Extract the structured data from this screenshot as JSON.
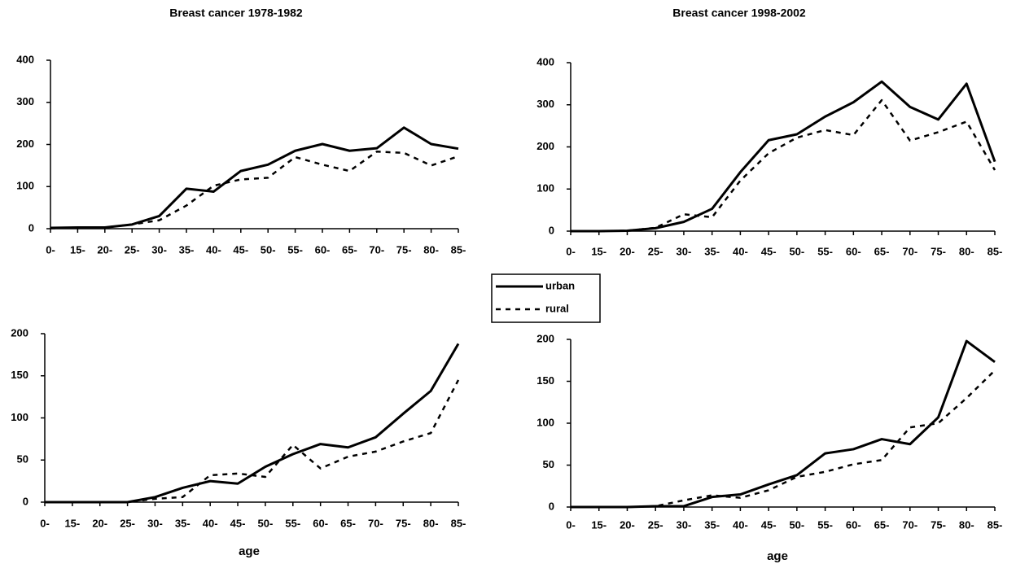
{
  "chart_data": [
    {
      "type": "line",
      "title": "Breast cancer 1978-1982",
      "categories": [
        "0-",
        "15-",
        "20-",
        "25-",
        "30-",
        "35-",
        "40-",
        "45-",
        "50-",
        "55-",
        "60-",
        "65-",
        "70-",
        "75-",
        "80-",
        "85-"
      ],
      "series": [
        {
          "name": "urban",
          "color": "#000000",
          "dashed": false,
          "values": [
            2,
            3,
            3,
            10,
            30,
            95,
            88,
            137,
            152,
            185,
            201,
            185,
            191,
            240,
            201,
            190
          ]
        },
        {
          "name": "rural",
          "color": "#000000",
          "dashed": true,
          "values": [
            1,
            2,
            3,
            10,
            20,
            55,
            102,
            117,
            121,
            170,
            152,
            137,
            183,
            180,
            150,
            172
          ]
        }
      ],
      "ylim": [
        0,
        400
      ],
      "yticks": [
        0,
        100,
        200,
        300,
        400
      ]
    },
    {
      "type": "line",
      "title": "Breast cancer 1998-2002",
      "categories": [
        "0-",
        "15-",
        "20-",
        "25-",
        "30-",
        "35-",
        "40-",
        "45-",
        "50-",
        "55-",
        "60-",
        "65-",
        "70-",
        "75-",
        "80-",
        "85-"
      ],
      "series": [
        {
          "color": "#000000",
          "dashed": false,
          "values": [
            0,
            0,
            1,
            7,
            22,
            53,
            140,
            216,
            230,
            272,
            306,
            355,
            295,
            265,
            350,
            165
          ]
        },
        {
          "color": "#000000",
          "dashed": true,
          "values": [
            0,
            0,
            1,
            8,
            40,
            33,
            120,
            185,
            222,
            240,
            228,
            311,
            215,
            235,
            260,
            145
          ]
        }
      ],
      "ylim": [
        0,
        400
      ],
      "yticks": [
        0,
        100,
        200,
        300,
        400
      ]
    },
    {
      "type": "line",
      "x_label": "age",
      "categories": [
        "0-",
        "15-",
        "20-",
        "25-",
        "30-",
        "35-",
        "40-",
        "45-",
        "50-",
        "55-",
        "60-",
        "65-",
        "70-",
        "75-",
        "80-",
        "85-"
      ],
      "series": [
        {
          "color": "#000000",
          "dashed": false,
          "values": [
            0,
            0,
            0,
            0,
            6,
            17,
            25,
            22,
            42,
            57,
            69,
            65,
            77,
            105,
            132,
            188
          ]
        },
        {
          "color": "#000000",
          "dashed": true,
          "values": [
            0,
            0,
            0,
            0,
            4,
            6,
            32,
            34,
            30,
            68,
            40,
            54,
            60,
            72,
            82,
            145
          ]
        }
      ],
      "ylim": [
        0,
        200
      ],
      "yticks": [
        0,
        50,
        100,
        150,
        200
      ]
    },
    {
      "type": "line",
      "x_label": "age",
      "categories": [
        "0-",
        "15-",
        "20-",
        "25-",
        "30-",
        "35-",
        "40-",
        "45-",
        "50-",
        "55-",
        "60-",
        "65-",
        "70-",
        "75-",
        "80-",
        "85-"
      ],
      "series": [
        {
          "color": "#000000",
          "dashed": false,
          "values": [
            0,
            0,
            0,
            1,
            1,
            12,
            15,
            27,
            38,
            64,
            69,
            81,
            75,
            107,
            198,
            173
          ]
        },
        {
          "color": "#000000",
          "dashed": true,
          "values": [
            0,
            0,
            0,
            1,
            8,
            14,
            11,
            20,
            36,
            42,
            51,
            56,
            95,
            100,
            130,
            163
          ]
        }
      ],
      "ylim": [
        0,
        200
      ],
      "yticks": [
        0,
        50,
        100,
        150,
        200
      ]
    }
  ]
}
